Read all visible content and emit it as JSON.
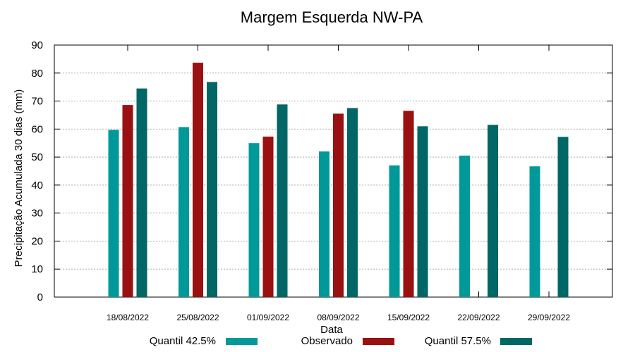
{
  "chart_data": {
    "type": "bar",
    "title": "Margem Esquerda NW-PA",
    "xlabel": "Data",
    "ylabel": "Precipitação Acumulada 30 dias (mm)",
    "ylim": [
      0,
      90
    ],
    "yticks": [
      0,
      10,
      20,
      30,
      40,
      50,
      60,
      70,
      80,
      90
    ],
    "grid": true,
    "legend_position": "bottom",
    "categories": [
      "18/08/2022",
      "25/08/2022",
      "01/09/2022",
      "08/09/2022",
      "15/09/2022",
      "22/09/2022",
      "29/09/2022"
    ],
    "series": [
      {
        "name": "Quantil 42.5%",
        "color": "#009999",
        "values": [
          59.7,
          60.7,
          55.0,
          52.0,
          47.0,
          50.5,
          46.7
        ]
      },
      {
        "name": "Observado",
        "color": "#991111",
        "values": [
          68.6,
          83.7,
          57.3,
          65.5,
          66.5,
          null,
          null
        ]
      },
      {
        "name": "Quantil 57.5%",
        "color": "#006666",
        "values": [
          74.5,
          76.8,
          68.8,
          67.5,
          61.0,
          61.5,
          57.2
        ]
      }
    ]
  }
}
